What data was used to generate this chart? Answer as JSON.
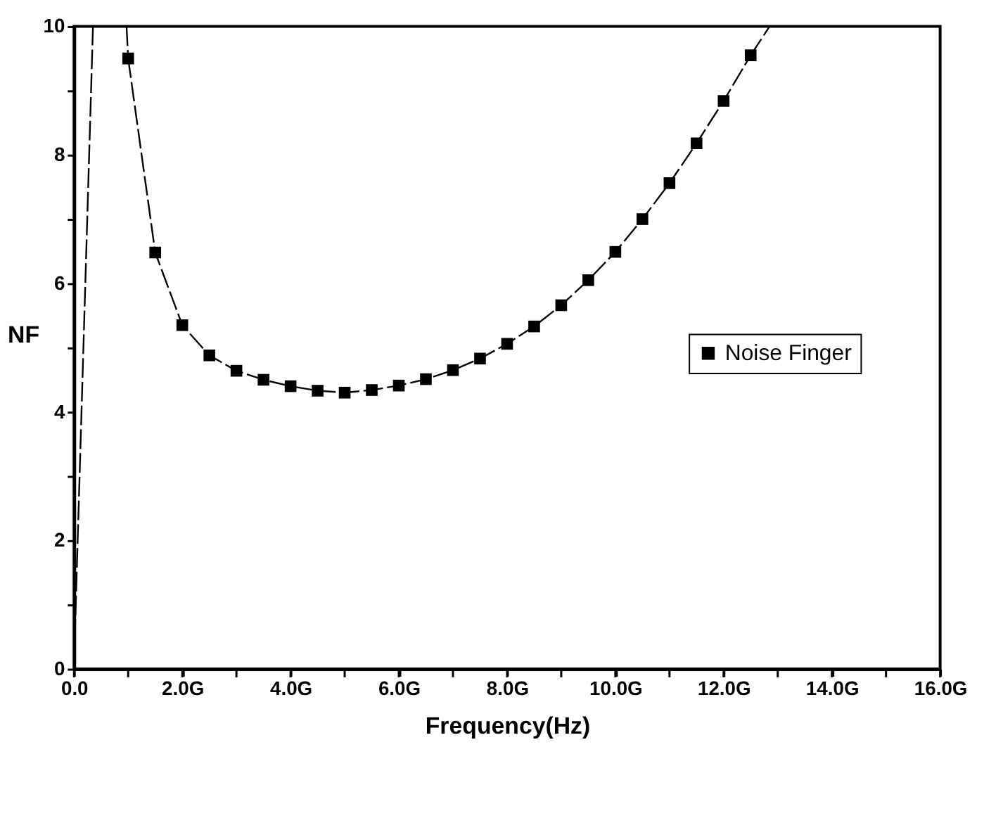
{
  "chart_data": {
    "type": "line",
    "xlabel": "Frequency(Hz)",
    "ylabel": "NF",
    "xlim": [
      0,
      16
    ],
    "ylim": [
      0,
      10
    ],
    "xticks": [
      {
        "value": 0,
        "label": "0.0"
      },
      {
        "value": 1,
        "label": null
      },
      {
        "value": 2,
        "label": "2.0G"
      },
      {
        "value": 3,
        "label": null
      },
      {
        "value": 4,
        "label": "4.0G"
      },
      {
        "value": 5,
        "label": null
      },
      {
        "value": 6,
        "label": "6.0G"
      },
      {
        "value": 7,
        "label": null
      },
      {
        "value": 8,
        "label": "8.0G"
      },
      {
        "value": 9,
        "label": null
      },
      {
        "value": 10,
        "label": "10.0G"
      },
      {
        "value": 11,
        "label": null
      },
      {
        "value": 12,
        "label": "12.0G"
      },
      {
        "value": 13,
        "label": null
      },
      {
        "value": 14,
        "label": "14.0G"
      },
      {
        "value": 15,
        "label": null
      },
      {
        "value": 16,
        "label": "16.0G"
      }
    ],
    "yticks": [
      0,
      {
        "value": 1,
        "label": null
      },
      2,
      {
        "value": 3,
        "label": null
      },
      4,
      {
        "value": 5,
        "label": null
      },
      6,
      {
        "value": 7,
        "label": null
      },
      8,
      {
        "value": 9,
        "label": null
      },
      10
    ],
    "grid": false,
    "legend": "right",
    "series": [
      {
        "name": "Noise Finger",
        "color": "#000000",
        "marker": "square",
        "line_style": "dashed",
        "x": [
          1.0,
          1.5,
          2.0,
          2.5,
          3.0,
          3.5,
          4.0,
          4.5,
          5.0,
          5.5,
          6.0,
          6.5,
          7.0,
          7.5,
          8.0,
          8.5,
          9.0,
          9.5,
          10.0,
          10.5,
          11.0,
          11.5,
          12.0,
          12.5
        ],
        "values": [
          9.5,
          6.48,
          5.35,
          4.88,
          4.64,
          4.5,
          4.4,
          4.33,
          4.3,
          4.34,
          4.41,
          4.51,
          4.65,
          4.83,
          5.06,
          5.33,
          5.66,
          6.05,
          6.49,
          7.0,
          7.56,
          8.18,
          8.84,
          9.55
        ]
      },
      {
        "color": "#000000",
        "marker": "none",
        "line_style": "dashed",
        "x": [
          0,
          0.35
        ],
        "values": [
          0.1,
          10
        ]
      },
      {
        "color": "#000000",
        "marker": "none",
        "line_style": "dashed",
        "x": [
          0.97,
          1.0
        ],
        "values": [
          10,
          9.5
        ]
      },
      {
        "color": "#000000",
        "marker": "none",
        "line_style": "dashed",
        "x": [
          12.5,
          12.85
        ],
        "values": [
          9.55,
          10
        ]
      }
    ]
  }
}
